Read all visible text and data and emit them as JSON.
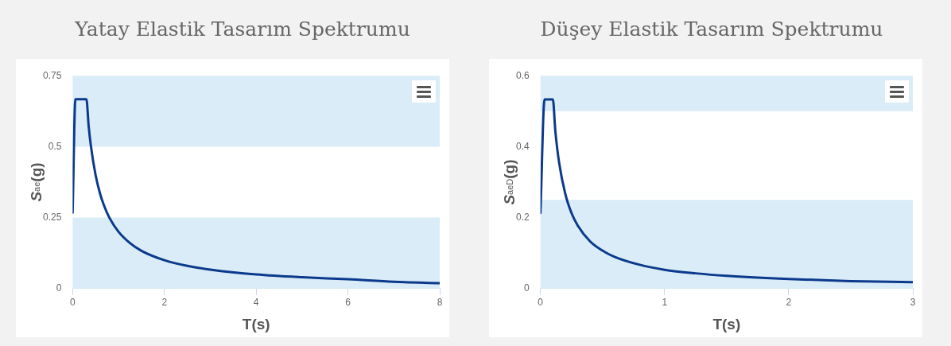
{
  "chart_data": [
    {
      "type": "line",
      "title": "Yatay Elastik Tasarım Spektrumu",
      "xlabel": "T(s)",
      "ylabel": "S$_{ae}$(g)",
      "color": "#0b3a8c",
      "x": [
        0,
        0.06,
        0.3,
        0.35,
        0.4,
        0.5,
        0.6,
        0.7,
        0.8,
        1,
        1.25,
        1.5,
        2,
        2.5,
        3,
        4,
        5,
        6,
        7,
        8
      ],
      "values": [
        0.267,
        0.667,
        0.667,
        0.571,
        0.5,
        0.4,
        0.333,
        0.286,
        0.25,
        0.2,
        0.16,
        0.133,
        0.1,
        0.08,
        0.067,
        0.05,
        0.04,
        0.033,
        0.024,
        0.019
      ],
      "xlim": [
        0,
        8
      ],
      "xticks": [
        0,
        2,
        4,
        6,
        8
      ],
      "ylim": [
        0,
        0.75
      ],
      "yticks": [
        0,
        0.25,
        0.5,
        0.75
      ],
      "bands": [
        {
          "axis": "y",
          "from": 0,
          "to": 0.25,
          "color": "#d9ecf7"
        },
        {
          "axis": "y",
          "from": 0.5,
          "to": 0.75,
          "color": "#d9ecf7"
        }
      ]
    },
    {
      "type": "line",
      "title": "Düşey Elastik Tasarım Spektrumu",
      "xlabel": "T(s)",
      "ylabel": "S$_{aeD}$(g)",
      "color": "#0b3a8c",
      "x": [
        0,
        0.033,
        0.1,
        0.12,
        0.15,
        0.2,
        0.25,
        0.3,
        0.4,
        0.5,
        0.6,
        0.8,
        1,
        1.25,
        1.5,
        2,
        2.5,
        3
      ],
      "values": [
        0.213,
        0.533,
        0.533,
        0.444,
        0.356,
        0.267,
        0.213,
        0.178,
        0.133,
        0.107,
        0.089,
        0.067,
        0.053,
        0.043,
        0.036,
        0.027,
        0.021,
        0.018
      ],
      "xlim": [
        0,
        3
      ],
      "xticks": [
        0,
        1,
        2,
        3
      ],
      "ylim": [
        0,
        0.6
      ],
      "yticks": [
        0,
        0.2,
        0.4,
        0.6
      ],
      "bands": [
        {
          "axis": "y",
          "from": 0,
          "to": 0.25,
          "color": "#d9ecf7"
        },
        {
          "axis": "y",
          "from": 0.5,
          "to": 0.6,
          "color": "#d9ecf7"
        }
      ]
    }
  ]
}
